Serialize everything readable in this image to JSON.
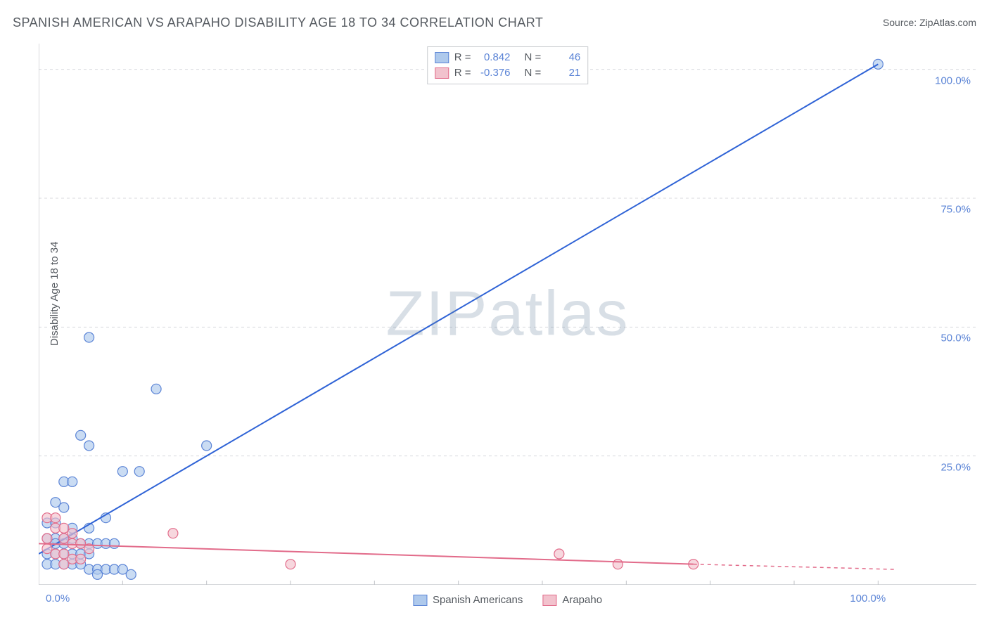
{
  "title": "SPANISH AMERICAN VS ARAPAHO DISABILITY AGE 18 TO 34 CORRELATION CHART",
  "source": "Source: ZipAtlas.com",
  "ylabel": "Disability Age 18 to 34",
  "watermark": "ZIPatlas",
  "chart": {
    "type": "scatter",
    "xlim": [
      0,
      105
    ],
    "ylim": [
      0,
      105
    ],
    "xticks": [
      {
        "v": 0,
        "l": "0.0%"
      },
      {
        "v": 100,
        "l": "100.0%"
      }
    ],
    "yticks": [
      {
        "v": 25,
        "l": "25.0%"
      },
      {
        "v": 50,
        "l": "50.0%"
      },
      {
        "v": 75,
        "l": "75.0%"
      },
      {
        "v": 100,
        "l": "100.0%"
      }
    ],
    "grid_color": "#d8dadd",
    "axis_color": "#bfc2c6",
    "xaxis_ticks": [
      0,
      10,
      20,
      30,
      40,
      50,
      60,
      70,
      80,
      90,
      100
    ],
    "series": [
      {
        "name": "Spanish Americans",
        "color_fill": "#aec9ec",
        "color_stroke": "#5b84d6",
        "R": 0.842,
        "N": 46,
        "marker_r": 7,
        "trend": {
          "x1": 0,
          "y1": 6,
          "x2": 100,
          "y2": 101,
          "solid_until": 100,
          "color": "#2f63d6"
        },
        "points": [
          [
            100,
            101
          ],
          [
            6,
            48
          ],
          [
            14,
            38
          ],
          [
            20,
            27
          ],
          [
            5,
            29
          ],
          [
            6,
            27
          ],
          [
            3,
            20
          ],
          [
            4,
            20
          ],
          [
            10,
            22
          ],
          [
            12,
            22
          ],
          [
            2,
            16
          ],
          [
            3,
            15
          ],
          [
            1,
            12
          ],
          [
            2,
            12
          ],
          [
            8,
            13
          ],
          [
            4,
            11
          ],
          [
            6,
            11
          ],
          [
            1,
            9
          ],
          [
            2,
            9
          ],
          [
            3,
            9
          ],
          [
            2,
            8
          ],
          [
            3,
            8
          ],
          [
            4,
            9
          ],
          [
            5,
            8
          ],
          [
            6,
            8
          ],
          [
            7,
            8
          ],
          [
            8,
            8
          ],
          [
            9,
            8
          ],
          [
            1,
            6
          ],
          [
            2,
            6
          ],
          [
            3,
            6
          ],
          [
            4,
            6
          ],
          [
            5,
            6
          ],
          [
            6,
            6
          ],
          [
            1,
            4
          ],
          [
            2,
            4
          ],
          [
            3,
            4
          ],
          [
            4,
            4
          ],
          [
            5,
            4
          ],
          [
            6,
            3
          ],
          [
            7,
            3
          ],
          [
            8,
            3
          ],
          [
            9,
            3
          ],
          [
            10,
            3
          ],
          [
            7,
            2
          ],
          [
            11,
            2
          ]
        ]
      },
      {
        "name": "Arapaho",
        "color_fill": "#f2c2cd",
        "color_stroke": "#e26b8a",
        "R": -0.376,
        "N": 21,
        "marker_r": 7,
        "trend": {
          "x1": 0,
          "y1": 8,
          "x2": 78,
          "y2": 4,
          "solid_until": 78,
          "dash_to": 102,
          "dash_y": 3,
          "color": "#e26b8a"
        },
        "points": [
          [
            78,
            4
          ],
          [
            69,
            4
          ],
          [
            62,
            6
          ],
          [
            30,
            4
          ],
          [
            16,
            10
          ],
          [
            1,
            13
          ],
          [
            2,
            13
          ],
          [
            2,
            11
          ],
          [
            3,
            11
          ],
          [
            4,
            10
          ],
          [
            1,
            9
          ],
          [
            3,
            9
          ],
          [
            4,
            8
          ],
          [
            5,
            8
          ],
          [
            6,
            7
          ],
          [
            1,
            7
          ],
          [
            2,
            6
          ],
          [
            3,
            6
          ],
          [
            4,
            5
          ],
          [
            5,
            5
          ],
          [
            3,
            4
          ]
        ]
      }
    ],
    "legend_bottom": [
      {
        "label": "Spanish Americans",
        "sw": "blue"
      },
      {
        "label": "Arapaho",
        "sw": "pink"
      }
    ]
  }
}
